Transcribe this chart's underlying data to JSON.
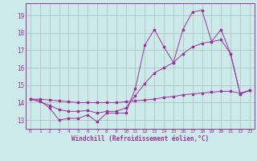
{
  "xlabel": "Windchill (Refroidissement éolien,°C)",
  "background_color": "#cceaea",
  "grid_color": "#aabbbb",
  "line_color": "#993399",
  "x_values": [
    0,
    1,
    2,
    3,
    4,
    5,
    6,
    7,
    8,
    9,
    10,
    11,
    12,
    13,
    14,
    15,
    16,
    17,
    18,
    19,
    20,
    21,
    22,
    23
  ],
  "series1": [
    14.2,
    14.1,
    13.7,
    13.0,
    13.1,
    13.1,
    13.3,
    12.9,
    13.4,
    13.4,
    13.4,
    14.8,
    17.3,
    18.2,
    17.2,
    16.3,
    18.2,
    19.2,
    19.3,
    17.5,
    18.2,
    16.8,
    14.5,
    14.7
  ],
  "trend1": [
    14.2,
    14.05,
    13.85,
    13.6,
    13.5,
    13.5,
    13.55,
    13.4,
    13.5,
    13.5,
    13.7,
    14.4,
    15.1,
    15.7,
    16.0,
    16.3,
    16.8,
    17.2,
    17.4,
    17.5,
    17.6,
    16.8,
    14.5,
    14.7
  ],
  "trend2": [
    14.2,
    14.2,
    14.15,
    14.1,
    14.05,
    14.0,
    14.0,
    14.0,
    14.0,
    14.0,
    14.05,
    14.1,
    14.15,
    14.2,
    14.3,
    14.35,
    14.45,
    14.5,
    14.55,
    14.6,
    14.65,
    14.65,
    14.55,
    14.7
  ],
  "ylim": [
    12.5,
    19.7
  ],
  "yticks": [
    13,
    14,
    15,
    16,
    17,
    18,
    19
  ],
  "xlim": [
    -0.5,
    23.5
  ],
  "xticks": [
    0,
    1,
    2,
    3,
    4,
    5,
    6,
    7,
    8,
    9,
    10,
    11,
    12,
    13,
    14,
    15,
    16,
    17,
    18,
    19,
    20,
    21,
    22,
    23
  ]
}
